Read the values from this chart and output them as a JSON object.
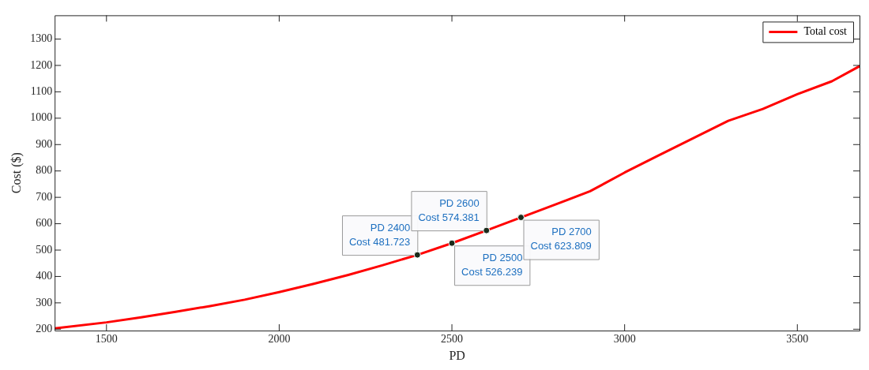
{
  "chart_data": {
    "type": "line",
    "xlabel": "PD",
    "ylabel": "Cost ($)",
    "x": [
      1350,
      1500,
      1600,
      1700,
      1800,
      1900,
      2000,
      2100,
      2200,
      2300,
      2400,
      2500,
      2600,
      2700,
      2800,
      2900,
      3000,
      3100,
      3200,
      3300,
      3400,
      3500,
      3600,
      3680
    ],
    "series": [
      {
        "name": "Total cost",
        "color": "#ff0000",
        "values": [
          203,
          226,
          245,
          266,
          288,
          312,
          341,
          372,
          406,
          443,
          481.723,
          526.239,
          574.381,
          623.809,
          673,
          723,
          794,
          860,
          925,
          990,
          1035,
          1091,
          1140,
          1197
        ]
      }
    ],
    "xlim": [
      1350,
      3680
    ],
    "ylim": [
      195,
      1390
    ],
    "xticks": [
      1500,
      2000,
      2500,
      3000,
      3500
    ],
    "yticks": [
      200,
      300,
      400,
      500,
      600,
      700,
      800,
      900,
      1000,
      1100,
      1200,
      1300
    ],
    "annotations": [
      {
        "text": "PD 2400\nCost 481.723",
        "x": 2400,
        "y": 481.723
      },
      {
        "text": "PD 2500\nCost 526.239",
        "x": 2500,
        "y": 526.239
      },
      {
        "text": "PD 2600\nCost 574.381",
        "x": 2600,
        "y": 574.381
      },
      {
        "text": "PD 2700\nCost 623.809",
        "x": 2700,
        "y": 623.809
      }
    ],
    "legend": "top right",
    "grid": false,
    "marker": "none",
    "line_style": "solid"
  }
}
